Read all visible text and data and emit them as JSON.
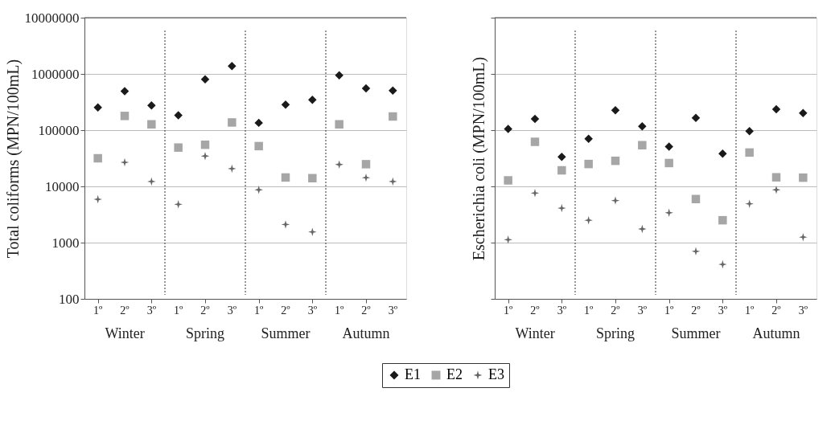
{
  "chart_data": [
    {
      "type": "scatter",
      "ylabel": "Total coliforms (MPN/100mL)",
      "categories": [
        "1º",
        "2º",
        "3º",
        "1º",
        "2º",
        "3º",
        "1º",
        "2º",
        "3º",
        "1º",
        "2º",
        "3º"
      ],
      "annotations": [
        "Winter",
        "Spring",
        "Summer",
        "Autumn"
      ],
      "log": "y",
      "ylim": [
        100,
        10000000
      ],
      "yticks": [
        100,
        1000,
        10000,
        100000,
        1000000,
        10000000
      ],
      "grid": "y",
      "legend": "bottom",
      "series": [
        {
          "name": "E1",
          "color": "#1a1a1a",
          "marker": "diamond",
          "values": [
            254000,
            493000,
            276000,
            184000,
            800000,
            1375000,
            135000,
            284000,
            347000,
            946000,
            555000,
            507000
          ]
        },
        {
          "name": "E2",
          "color": "#a6a6a6",
          "marker": "square",
          "values": [
            31600,
            179000,
            127000,
            49000,
            55000,
            137000,
            52000,
            14400,
            14000,
            127000,
            24800,
            175000
          ]
        },
        {
          "name": "E3",
          "color": "#666666",
          "marker": "star",
          "values": [
            5900,
            26800,
            12200,
            4800,
            34600,
            20700,
            8700,
            2100,
            1550,
            24500,
            14300,
            12200
          ]
        }
      ]
    },
    {
      "type": "scatter",
      "ylabel": "Escherichia coli (MPN/100mL)",
      "categories": [
        "1º",
        "2º",
        "3º",
        "1º",
        "2º",
        "3º",
        "1º",
        "2º",
        "3º",
        "1º",
        "2º",
        "3º"
      ],
      "annotations": [
        "Winter",
        "Spring",
        "Summer",
        "Autumn"
      ],
      "log": "y",
      "ylim": [
        100,
        10000000
      ],
      "yticks": [
        100,
        1000,
        10000,
        100000,
        1000000,
        10000000
      ],
      "grid": "y",
      "tick_labels": "x",
      "legend": "bottom",
      "series": [
        {
          "name": "E1",
          "color": "#1a1a1a",
          "marker": "diamond",
          "values": [
            105000,
            158000,
            33600,
            70000,
            225000,
            117000,
            51000,
            165000,
            38100,
            96000,
            235000,
            201000
          ]
        },
        {
          "name": "E2",
          "color": "#a6a6a6",
          "marker": "square",
          "values": [
            12800,
            62000,
            19300,
            25000,
            28500,
            54000,
            26000,
            5950,
            2500,
            40000,
            14500,
            14300
          ]
        },
        {
          "name": "E3",
          "color": "#666666",
          "marker": "star",
          "values": [
            1130,
            7600,
            4100,
            2500,
            5600,
            1750,
            3400,
            700,
            410,
            4900,
            8700,
            1250
          ]
        }
      ]
    }
  ]
}
